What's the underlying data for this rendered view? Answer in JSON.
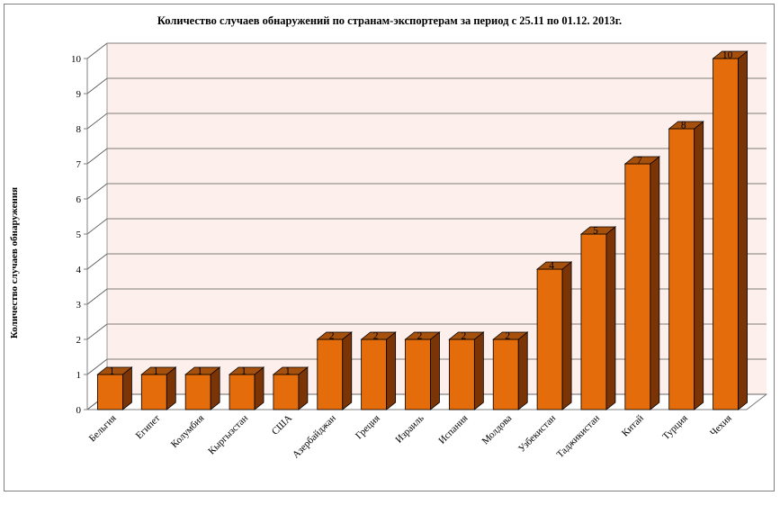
{
  "chart_data": {
    "type": "bar",
    "title": "Количество случаев обнаружений по странам-экспортерам за период с 25.11 по 01.12. 2013г.",
    "xlabel": "",
    "ylabel": "Количество случаев обнаружения",
    "ylim": [
      0,
      10
    ],
    "yticks": [
      "0",
      "1",
      "2",
      "3",
      "4",
      "5",
      "6",
      "7",
      "8",
      "9",
      "10"
    ],
    "grid": true,
    "style": "3d",
    "colors": {
      "bar_front": "#e46c0a",
      "bar_side": "#7a3406",
      "bar_top": "#a5500d",
      "wall": "#fdf0ec"
    },
    "categories": [
      "Бельгия",
      "Египет",
      "Колумбия",
      "Кыргызстан",
      "США",
      "Азербайджан",
      "Греция",
      "Израиль",
      "Испания",
      "Молдова",
      "Узбекистан",
      "Таджикистан",
      "Китай",
      "Турция",
      "Чехия"
    ],
    "values": [
      1,
      1,
      1,
      1,
      1,
      2,
      2,
      2,
      2,
      2,
      4,
      5,
      7,
      8,
      10
    ],
    "data_labels": [
      "1",
      "1",
      "1",
      "1",
      "1",
      "2",
      "2",
      "2",
      "2",
      "2",
      "4",
      "5",
      "7",
      "8",
      "10"
    ]
  }
}
